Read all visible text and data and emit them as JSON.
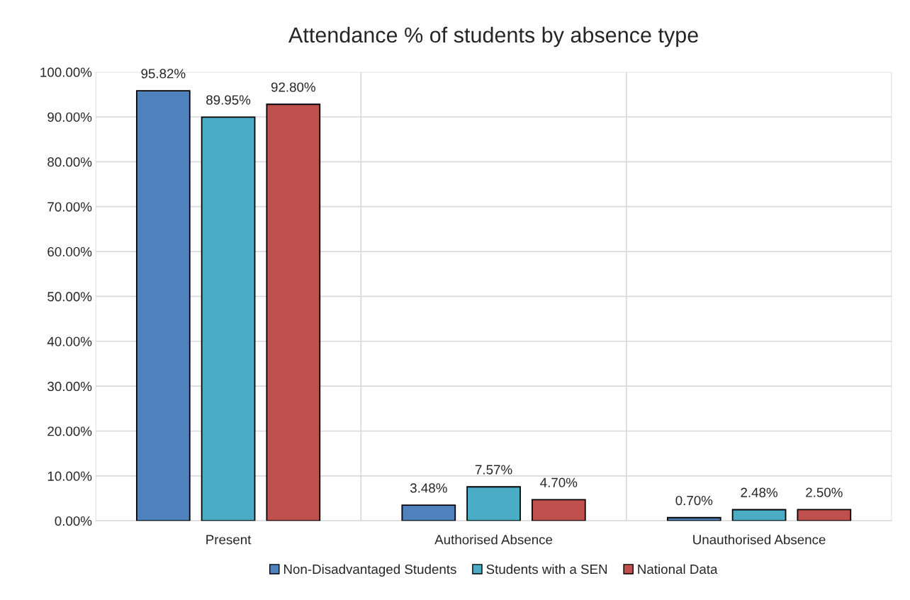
{
  "chart_data": {
    "type": "bar",
    "title": "Attendance % of students by absence type",
    "categories": [
      "Present",
      "Authorised Absence",
      "Unauthorised Absence"
    ],
    "series": [
      {
        "name": "Non-Disadvantaged Students",
        "color": "#4f81bd",
        "values": [
          95.82,
          3.48,
          0.7
        ],
        "value_labels": [
          "95.82%",
          "3.48%",
          "0.70%"
        ]
      },
      {
        "name": "Students with a SEN",
        "color": "#4bacc6",
        "values": [
          89.95,
          7.57,
          2.48
        ],
        "value_labels": [
          "89.95%",
          "7.57%",
          "2.48%"
        ]
      },
      {
        "name": "National Data",
        "color": "#c0504d",
        "values": [
          92.8,
          4.7,
          2.5
        ],
        "value_labels": [
          "92.80%",
          "4.70%",
          "2.50%"
        ]
      }
    ],
    "ylim": [
      0,
      100
    ],
    "yticks": [
      {
        "value": 0,
        "label": "0.00%"
      },
      {
        "value": 10,
        "label": "10.00%"
      },
      {
        "value": 20,
        "label": "20.00%"
      },
      {
        "value": 30,
        "label": "30.00%"
      },
      {
        "value": 40,
        "label": "40.00%"
      },
      {
        "value": 50,
        "label": "50.00%"
      },
      {
        "value": 60,
        "label": "60.00%"
      },
      {
        "value": 70,
        "label": "70.00%"
      },
      {
        "value": 80,
        "label": "80.00%"
      },
      {
        "value": 90,
        "label": "90.00%"
      },
      {
        "value": 100,
        "label": "100.00%"
      }
    ],
    "grid": true,
    "legend": "bottom"
  }
}
